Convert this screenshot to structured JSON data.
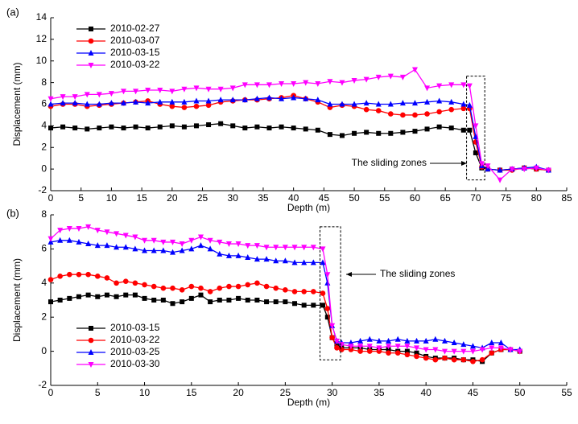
{
  "chart_data": [
    {
      "type": "line",
      "label": "(a)",
      "x_label": "Depth (m)",
      "y_label": "Displacement (mm)",
      "annotation": "The sliding zones",
      "legend": "upper left",
      "xlim": [
        0,
        85
      ],
      "ylim": [
        -2,
        14
      ],
      "xticks": [
        0,
        5,
        10,
        15,
        20,
        25,
        30,
        35,
        40,
        45,
        50,
        55,
        60,
        65,
        70,
        75,
        80,
        85
      ],
      "yticks": [
        -2,
        0,
        2,
        4,
        6,
        8,
        10,
        12,
        14
      ],
      "x": [
        0,
        2,
        4,
        6,
        8,
        10,
        12,
        14,
        16,
        18,
        20,
        22,
        24,
        26,
        28,
        30,
        32,
        34,
        36,
        38,
        40,
        42,
        44,
        46,
        48,
        50,
        52,
        54,
        56,
        58,
        60,
        62,
        64,
        66,
        68,
        69,
        70,
        71,
        72,
        74,
        76,
        78,
        80,
        82
      ],
      "series": [
        {
          "name": "2010-02-27",
          "color": "#000000",
          "marker": "square",
          "values": [
            3.8,
            3.9,
            3.8,
            3.7,
            3.8,
            3.9,
            3.8,
            3.9,
            3.8,
            3.9,
            4.0,
            3.9,
            4.0,
            4.1,
            4.2,
            4.0,
            3.8,
            3.9,
            3.8,
            3.9,
            3.8,
            3.7,
            3.6,
            3.2,
            3.1,
            3.3,
            3.4,
            3.3,
            3.3,
            3.4,
            3.5,
            3.7,
            3.9,
            3.8,
            3.6,
            3.6,
            1.5,
            0.1,
            0.0,
            -0.1,
            0.0,
            0.1,
            0.0,
            -0.1
          ]
        },
        {
          "name": "2010-03-07",
          "color": "#ff0000",
          "marker": "circle",
          "values": [
            5.8,
            6.0,
            6.0,
            5.8,
            5.9,
            6.0,
            6.1,
            6.2,
            6.3,
            6.0,
            5.8,
            5.7,
            5.8,
            5.9,
            6.2,
            6.3,
            6.4,
            6.4,
            6.5,
            6.6,
            6.8,
            6.5,
            6.2,
            5.7,
            5.9,
            5.8,
            5.5,
            5.4,
            5.1,
            5.0,
            5.0,
            5.1,
            5.3,
            5.5,
            5.6,
            5.6,
            2.5,
            0.2,
            0.0,
            -0.1,
            -0.1,
            0.1,
            0.0,
            -0.1
          ]
        },
        {
          "name": "2010-03-15",
          "color": "#0000ff",
          "marker": "triangle-up",
          "values": [
            6.0,
            6.1,
            6.1,
            6.0,
            6.0,
            6.1,
            6.1,
            6.2,
            6.1,
            6.2,
            6.2,
            6.2,
            6.3,
            6.3,
            6.4,
            6.4,
            6.4,
            6.5,
            6.6,
            6.5,
            6.6,
            6.5,
            6.4,
            6.0,
            6.0,
            6.0,
            6.1,
            6.0,
            6.0,
            6.1,
            6.1,
            6.2,
            6.3,
            6.2,
            6.0,
            5.9,
            3.0,
            0.3,
            0.0,
            -0.1,
            0.0,
            0.1,
            0.2,
            -0.1
          ]
        },
        {
          "name": "2010-03-22",
          "color": "#ff00ff",
          "marker": "triangle-down",
          "values": [
            6.5,
            6.7,
            6.7,
            6.9,
            6.9,
            7.0,
            7.2,
            7.2,
            7.3,
            7.3,
            7.2,
            7.4,
            7.5,
            7.4,
            7.4,
            7.5,
            7.8,
            7.8,
            7.8,
            7.9,
            7.9,
            8.0,
            7.9,
            8.1,
            8.0,
            8.2,
            8.3,
            8.5,
            8.6,
            8.5,
            9.2,
            7.5,
            7.7,
            7.8,
            7.8,
            7.7,
            4.0,
            0.5,
            0.3,
            -1.0,
            0.0,
            0.0,
            0.1,
            -0.1
          ]
        }
      ]
    },
    {
      "type": "line",
      "label": "(b)",
      "x_label": "Depth (m)",
      "y_label": "Displacement (mm)",
      "annotation": "The sliding zones",
      "legend": "lower left",
      "xlim": [
        0,
        55
      ],
      "ylim": [
        -2,
        8
      ],
      "xticks": [
        0,
        5,
        10,
        15,
        20,
        25,
        30,
        35,
        40,
        45,
        50,
        55
      ],
      "yticks": [
        -2,
        0,
        2,
        4,
        6,
        8
      ],
      "x": [
        0,
        1,
        2,
        3,
        4,
        5,
        6,
        7,
        8,
        9,
        10,
        11,
        12,
        13,
        14,
        15,
        16,
        17,
        18,
        19,
        20,
        21,
        22,
        23,
        24,
        25,
        26,
        27,
        28,
        29,
        29.5,
        30,
        30.5,
        31,
        32,
        33,
        34,
        35,
        36,
        37,
        38,
        39,
        40,
        41,
        42,
        43,
        44,
        45,
        46,
        47,
        48,
        49,
        50
      ],
      "series": [
        {
          "name": "2010-03-15",
          "color": "#000000",
          "marker": "square",
          "values": [
            2.9,
            3.0,
            3.1,
            3.2,
            3.3,
            3.2,
            3.3,
            3.2,
            3.3,
            3.3,
            3.1,
            3.0,
            3.0,
            2.8,
            2.9,
            3.1,
            3.3,
            2.9,
            3.0,
            3.0,
            3.1,
            3.0,
            3.0,
            2.9,
            2.9,
            2.9,
            2.8,
            2.7,
            2.7,
            2.7,
            2.0,
            0.8,
            0.3,
            0.2,
            0.2,
            0.2,
            0.1,
            0.1,
            0.1,
            0.0,
            0.0,
            -0.1,
            -0.3,
            -0.4,
            -0.4,
            -0.4,
            -0.5,
            -0.5,
            -0.6,
            -0.1,
            0.1,
            0.1,
            0.0
          ]
        },
        {
          "name": "2010-03-22",
          "color": "#ff0000",
          "marker": "circle",
          "values": [
            4.2,
            4.4,
            4.5,
            4.5,
            4.5,
            4.4,
            4.3,
            4.0,
            4.1,
            4.0,
            3.9,
            3.8,
            3.7,
            3.7,
            3.6,
            3.8,
            3.7,
            3.5,
            3.7,
            3.8,
            3.8,
            3.9,
            4.0,
            3.8,
            3.7,
            3.6,
            3.5,
            3.5,
            3.5,
            3.4,
            2.5,
            0.8,
            0.2,
            0.1,
            0.1,
            0.0,
            0.0,
            0.0,
            -0.1,
            -0.1,
            -0.2,
            -0.3,
            -0.4,
            -0.5,
            -0.4,
            -0.5,
            -0.5,
            -0.6,
            -0.5,
            -0.1,
            0.1,
            0.1,
            0.0
          ]
        },
        {
          "name": "2010-03-25",
          "color": "#0000ff",
          "marker": "triangle-up",
          "values": [
            6.4,
            6.5,
            6.5,
            6.4,
            6.3,
            6.2,
            6.2,
            6.1,
            6.1,
            6.0,
            5.9,
            5.9,
            5.9,
            5.8,
            5.9,
            6.0,
            6.2,
            6.0,
            5.7,
            5.6,
            5.6,
            5.5,
            5.4,
            5.4,
            5.3,
            5.3,
            5.2,
            5.2,
            5.2,
            5.2,
            4.0,
            1.5,
            0.6,
            0.5,
            0.5,
            0.6,
            0.7,
            0.6,
            0.6,
            0.7,
            0.6,
            0.6,
            0.6,
            0.7,
            0.6,
            0.5,
            0.4,
            0.3,
            0.2,
            0.5,
            0.5,
            0.1,
            0.1
          ]
        },
        {
          "name": "2010-03-30",
          "color": "#ff00ff",
          "marker": "triangle-down",
          "values": [
            6.6,
            7.1,
            7.2,
            7.2,
            7.3,
            7.1,
            7.0,
            6.9,
            6.8,
            6.7,
            6.5,
            6.5,
            6.4,
            6.4,
            6.3,
            6.5,
            6.7,
            6.5,
            6.4,
            6.3,
            6.3,
            6.2,
            6.2,
            6.1,
            6.1,
            6.1,
            6.1,
            6.1,
            6.1,
            6.0,
            4.5,
            1.5,
            0.6,
            0.4,
            0.3,
            0.3,
            0.3,
            0.2,
            0.3,
            0.3,
            0.3,
            0.2,
            0.1,
            0.1,
            0.0,
            0.0,
            0.0,
            0.0,
            0.1,
            0.2,
            0.2,
            0.1,
            0.0
          ]
        }
      ]
    }
  ]
}
